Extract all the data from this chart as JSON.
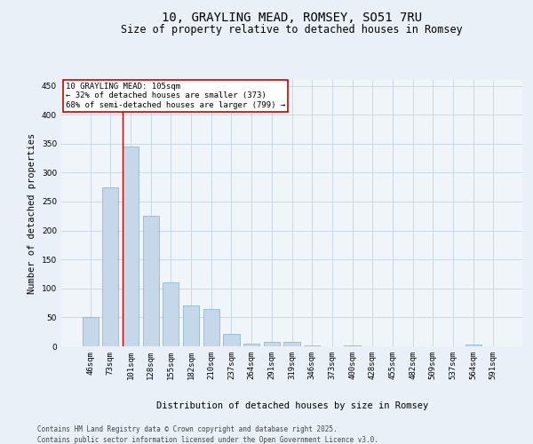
{
  "title": "10, GRAYLING MEAD, ROMSEY, SO51 7RU",
  "subtitle": "Size of property relative to detached houses in Romsey",
  "xlabel": "Distribution of detached houses by size in Romsey",
  "ylabel": "Number of detached properties",
  "categories": [
    "46sqm",
    "73sqm",
    "101sqm",
    "128sqm",
    "155sqm",
    "182sqm",
    "210sqm",
    "237sqm",
    "264sqm",
    "291sqm",
    "319sqm",
    "346sqm",
    "373sqm",
    "400sqm",
    "428sqm",
    "455sqm",
    "482sqm",
    "509sqm",
    "537sqm",
    "564sqm",
    "591sqm"
  ],
  "values": [
    50,
    275,
    345,
    225,
    110,
    70,
    65,
    22,
    5,
    7,
    8,
    1,
    0,
    1,
    0,
    0,
    0,
    0,
    0,
    3,
    0
  ],
  "bar_color": "#c5d8ea",
  "bar_edge_color": "#7fb0d0",
  "grid_color": "#c8d8e8",
  "bg_color": "#eaf0f7",
  "plot_bg_color": "#f0f5fa",
  "ylim": [
    0,
    460
  ],
  "yticks": [
    0,
    50,
    100,
    150,
    200,
    250,
    300,
    350,
    400,
    450
  ],
  "marker_bar_index": 2,
  "marker_label": "10 GRAYLING MEAD: 105sqm",
  "annotation_line1": "← 32% of detached houses are smaller (373)",
  "annotation_line2": "68% of semi-detached houses are larger (799) →",
  "annotation_box_edgecolor": "#cc0000",
  "vline_color": "#cc0000",
  "footer1": "Contains HM Land Registry data © Crown copyright and database right 2025.",
  "footer2": "Contains public sector information licensed under the Open Government Licence v3.0.",
  "title_fontsize": 10,
  "subtitle_fontsize": 8.5,
  "axis_label_fontsize": 7.5,
  "tick_fontsize": 6.5,
  "annotation_fontsize": 6.5,
  "footer_fontsize": 5.5
}
